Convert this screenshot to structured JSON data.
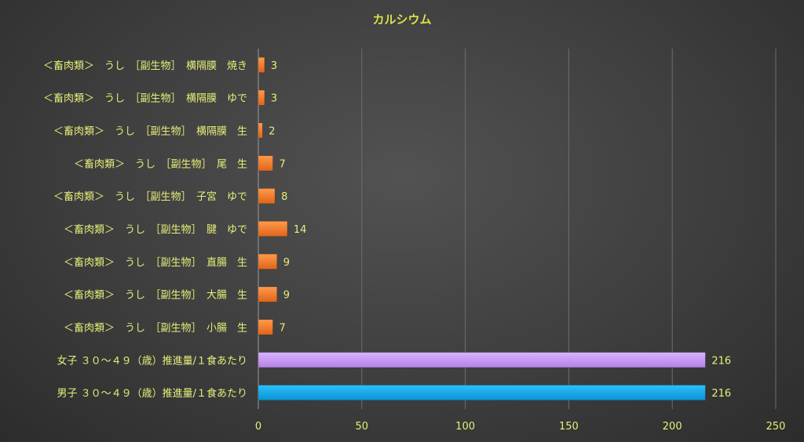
{
  "chart_data": {
    "type": "bar",
    "orientation": "horizontal",
    "title": "カルシウム",
    "xlim": [
      0,
      250
    ],
    "xticks": [
      0,
      50,
      100,
      150,
      200,
      250
    ],
    "grid": true,
    "legend": "none",
    "categories": [
      "＜畜肉類＞　うし　［副生物］　横隔膜　焼き",
      "＜畜肉類＞　うし　［副生物］　横隔膜　ゆで",
      "＜畜肉類＞　うし　［副生物］　横隔膜　生",
      "＜畜肉類＞　うし　［副生物］　尾　生",
      "＜畜肉類＞　うし　［副生物］　子宮　ゆで",
      "＜畜肉類＞　うし　［副生物］　腱　ゆで",
      "＜畜肉類＞　うし　［副生物］　直腸　生",
      "＜畜肉類＞　うし　［副生物］　大腸　生",
      "＜畜肉類＞　うし　［副生物］　小腸　生",
      "女子 ３０～４９（歳）推進量/１食あたり",
      "男子 ３０～４９（歳）推進量/１食あたり"
    ],
    "values": [
      3,
      3,
      2,
      7,
      8,
      14,
      9,
      9,
      7,
      216,
      216
    ],
    "colors": [
      "#f07a2a",
      "#f07a2a",
      "#f07a2a",
      "#f07a2a",
      "#f07a2a",
      "#f07a2a",
      "#f07a2a",
      "#f07a2a",
      "#f07a2a",
      "#c89af0",
      "#16a8e6"
    ]
  }
}
